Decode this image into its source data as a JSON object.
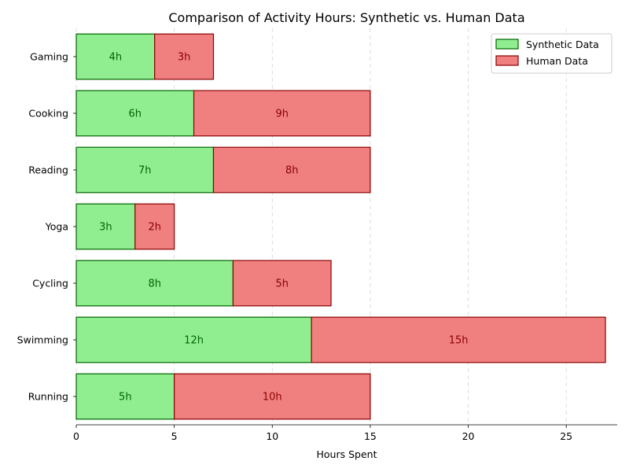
{
  "chart_data": {
    "type": "bar",
    "orientation": "horizontal",
    "stacked": true,
    "title": "Comparison of Activity Hours: Synthetic vs. Human Data",
    "xlabel": "Hours Spent",
    "ylabel": "",
    "xlim": [
      0,
      27.6
    ],
    "xticks": [
      0,
      5,
      10,
      15,
      20,
      25
    ],
    "grid": "x",
    "legend_position": "top-right",
    "categories": [
      "Running",
      "Swimming",
      "Cycling",
      "Yoga",
      "Reading",
      "Cooking",
      "Gaming"
    ],
    "series": [
      {
        "name": "Synthetic Data",
        "values": [
          5,
          12,
          8,
          3,
          7,
          6,
          4
        ],
        "labels": [
          "5h",
          "12h",
          "8h",
          "3h",
          "7h",
          "6h",
          "4h"
        ],
        "fill": "#90ee90",
        "edge": "#006400",
        "label_color": "#006400"
      },
      {
        "name": "Human Data",
        "values": [
          10,
          15,
          5,
          2,
          8,
          9,
          3
        ],
        "labels": [
          "10h",
          "15h",
          "5h",
          "2h",
          "8h",
          "9h",
          "3h"
        ],
        "fill": "#f08080",
        "edge": "#8b0000",
        "label_color": "#8b0000"
      }
    ]
  }
}
